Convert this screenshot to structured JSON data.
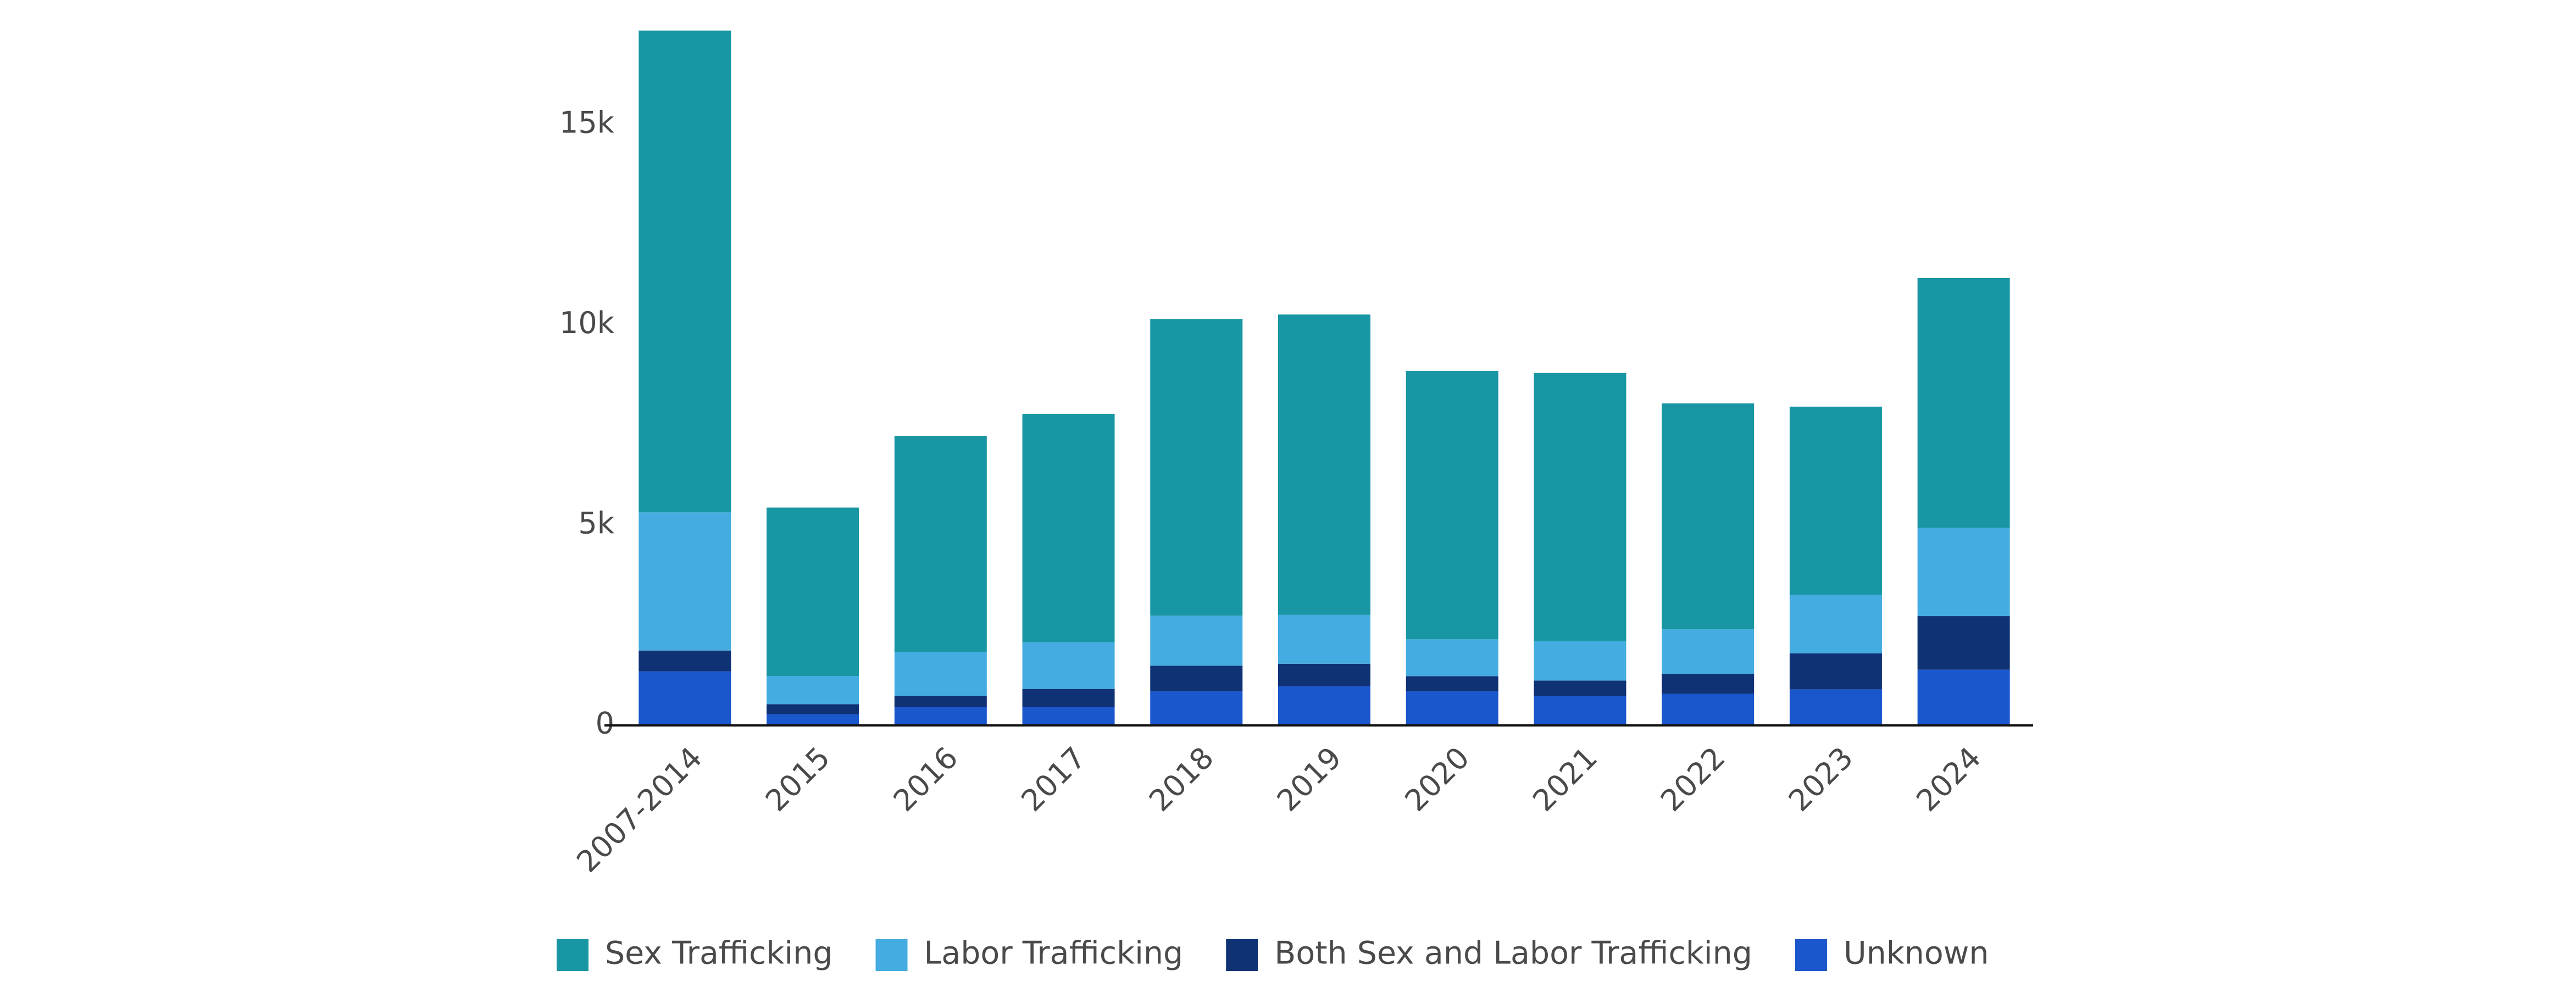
{
  "chart_data": {
    "type": "bar",
    "stacked": true,
    "title": "",
    "xlabel": "",
    "ylabel": "",
    "ylim": [
      0,
      17400
    ],
    "yticks": [
      0,
      5000,
      10000,
      15000
    ],
    "ytick_labels": [
      "0",
      "5k",
      "10k",
      "15k"
    ],
    "categories": [
      "2007-2014",
      "2015",
      "2016",
      "2017",
      "2018",
      "2019",
      "2020",
      "2021",
      "2022",
      "2023",
      "2024"
    ],
    "series": [
      {
        "name": "Unknown",
        "color": "#1a56cc",
        "values": [
          1350,
          280,
          460,
          460,
          850,
          980,
          850,
          730,
          790,
          900,
          1390
        ]
      },
      {
        "name": "Both Sex and Labor Trafficking",
        "color": "#0f3275",
        "values": [
          520,
          250,
          280,
          450,
          640,
          560,
          380,
          390,
          500,
          900,
          1340
        ]
      },
      {
        "name": "Labor Trafficking",
        "color": "#44ace0",
        "values": [
          3450,
          700,
          1090,
          1170,
          1250,
          1220,
          920,
          980,
          1110,
          1460,
          2200
        ]
      },
      {
        "name": "Sex Trafficking",
        "color": "#1896a4",
        "values": [
          12030,
          4210,
          5400,
          5700,
          7410,
          7500,
          6700,
          6700,
          5640,
          4700,
          6240
        ]
      }
    ],
    "legend": {
      "position": "bottom-left",
      "order": [
        "Sex Trafficking",
        "Labor Trafficking",
        "Both Sex and Labor Trafficking",
        "Unknown"
      ]
    }
  }
}
